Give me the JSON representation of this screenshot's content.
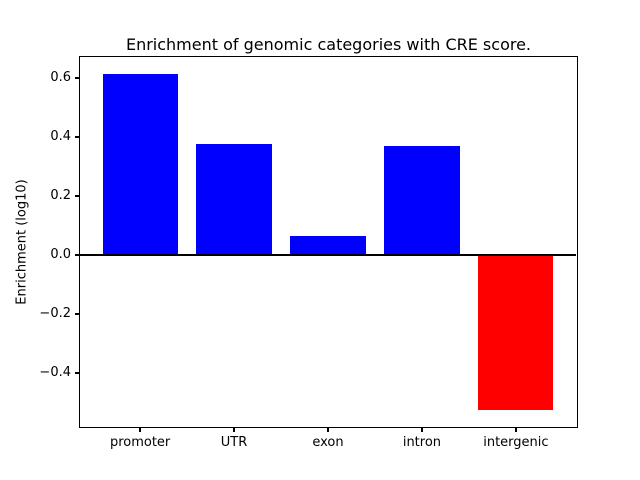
{
  "chart_data": {
    "type": "bar",
    "title": "Enrichment of genomic categories with CRE score.",
    "categories": [
      "promoter",
      "UTR",
      "exon",
      "intron",
      "intergenic"
    ],
    "values": [
      0.613,
      0.375,
      0.062,
      0.37,
      -0.527
    ],
    "bar_colors": [
      "#0000ff",
      "#0000ff",
      "#0000ff",
      "#0000ff",
      "#ff0000"
    ],
    "positive_color": "#0000ff",
    "negative_color": "#ff0000",
    "xlabel": "",
    "ylabel": "Enrichment (log10)",
    "xlim": [
      -0.64,
      4.64
    ],
    "ylim": [
      -0.584,
      0.67
    ],
    "bar_width": 0.8,
    "yticks": [
      0.6,
      0.4,
      0.2,
      0.0,
      -0.2,
      -0.4
    ],
    "ytick_labels": [
      "0.6",
      "0.4",
      "0.2",
      "0.0",
      "−0.2",
      "−0.4"
    ],
    "zero_line": true,
    "zero_line_color": "#000000",
    "axis_color": "#000000",
    "background": "#ffffff",
    "grid": false,
    "legend": "none"
  }
}
